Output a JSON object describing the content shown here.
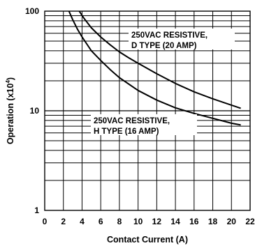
{
  "chart_data": {
    "type": "line",
    "xlabel": "Contact Current (A)",
    "ylabel_main": "Operation (x10",
    "ylabel_exp": "4",
    "ylabel_close": ")",
    "xlim": [
      0,
      22
    ],
    "ylim": [
      1,
      100
    ],
    "yscale": "log",
    "grid": true,
    "x_ticks": [
      0,
      2,
      4,
      6,
      8,
      10,
      12,
      14,
      16,
      18,
      20,
      22
    ],
    "x_tick_labels": [
      "0",
      "2",
      "4",
      "6",
      "8",
      "10",
      "12",
      "14",
      "16",
      "18",
      "20",
      "22"
    ],
    "y_ticks": [
      1,
      10,
      100
    ],
    "y_tick_labels": [
      "1",
      "10",
      "100"
    ],
    "series": [
      {
        "name_lines": [
          "250VAC RESISTIVE,",
          "D TYPE (20 AMP)"
        ],
        "x": [
          3.7,
          4.2,
          5,
          6,
          7,
          8,
          9,
          10,
          12,
          14,
          16,
          18,
          20,
          21
        ],
        "y": [
          100,
          85,
          68,
          55,
          46,
          39,
          34,
          30,
          23.5,
          18.8,
          15.5,
          13.2,
          11.4,
          10.6
        ]
      },
      {
        "name_lines": [
          "250VAC RESISTIVE,",
          "H TYPE (16 AMP)"
        ],
        "x": [
          2.6,
          3,
          3.5,
          4,
          5,
          6,
          7,
          8,
          10,
          12,
          14,
          16,
          18,
          20,
          21
        ],
        "y": [
          100,
          82,
          66,
          55,
          40,
          32,
          26,
          21.5,
          16,
          12.8,
          10.7,
          9.4,
          8.4,
          7.5,
          7.2
        ]
      }
    ]
  }
}
